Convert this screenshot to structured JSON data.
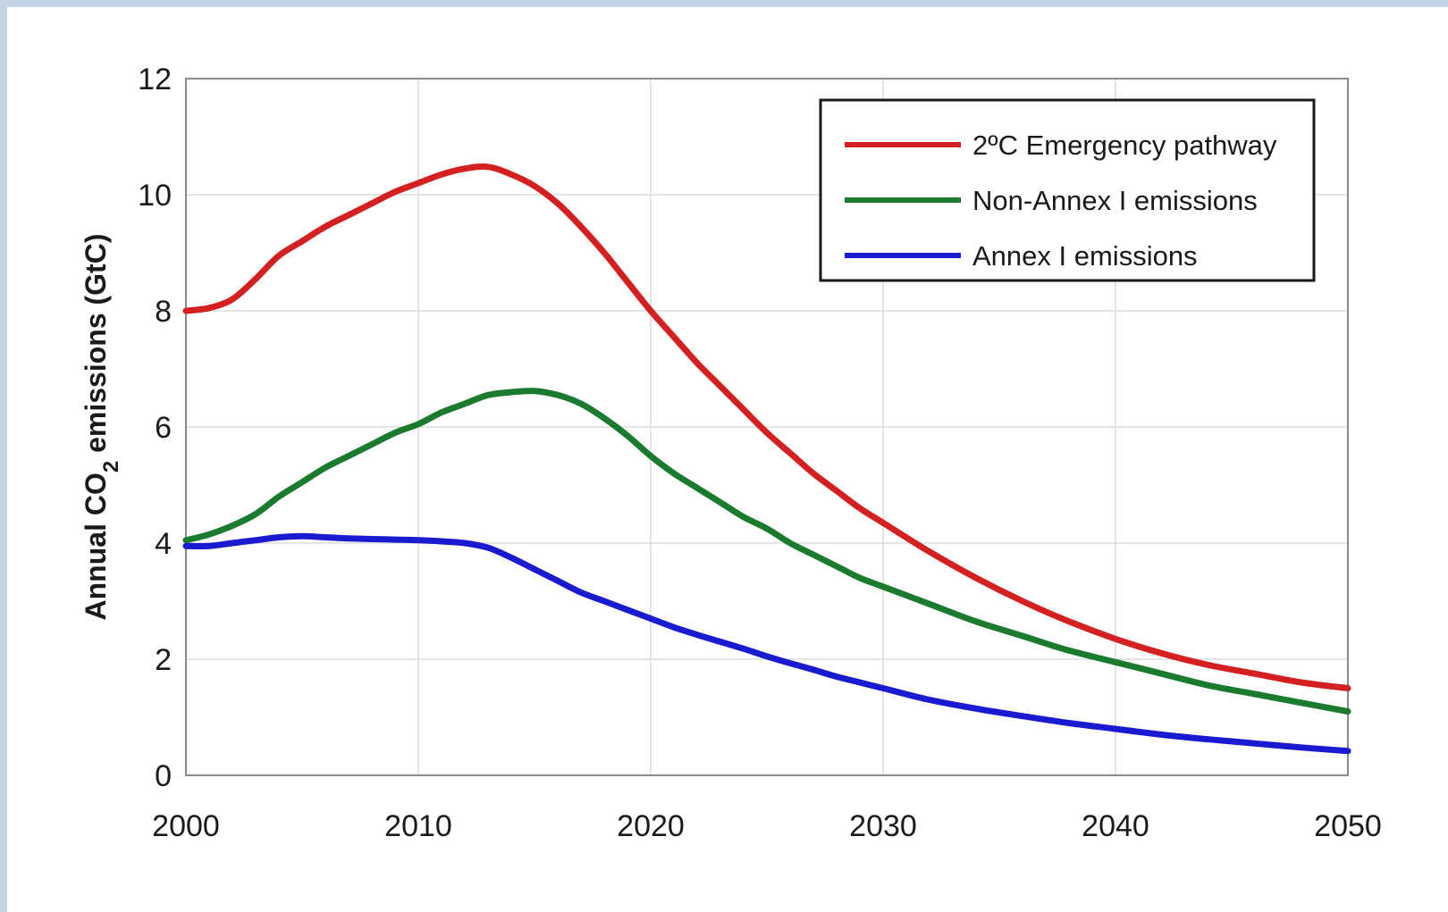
{
  "chart_data": {
    "type": "line",
    "title": "",
    "xlabel": "",
    "ylabel_parts": {
      "before": "Annual CO",
      "subscript": "2",
      "after": " emissions (GtC)"
    },
    "xlim": [
      2000,
      2050
    ],
    "ylim": [
      0,
      12
    ],
    "xticks": [
      2000,
      2010,
      2020,
      2030,
      2040,
      2050
    ],
    "yticks": [
      0,
      2,
      4,
      6,
      8,
      10,
      12
    ],
    "grid": true,
    "legend_position": "top-right",
    "series": [
      {
        "name": "2ºC Emergency pathway",
        "color": "#d42020",
        "x": [
          2000,
          2001,
          2002,
          2003,
          2004,
          2005,
          2006,
          2007,
          2008,
          2009,
          2010,
          2011,
          2012,
          2013,
          2014,
          2015,
          2016,
          2017,
          2018,
          2019,
          2020,
          2021,
          2022,
          2023,
          2024,
          2025,
          2026,
          2027,
          2028,
          2029,
          2030,
          2032,
          2034,
          2036,
          2038,
          2040,
          2042,
          2044,
          2046,
          2048,
          2050
        ],
        "y": [
          8.0,
          8.05,
          8.2,
          8.55,
          8.95,
          9.2,
          9.45,
          9.65,
          9.85,
          10.05,
          10.2,
          10.35,
          10.45,
          10.48,
          10.35,
          10.15,
          9.85,
          9.45,
          9.0,
          8.5,
          8.0,
          7.55,
          7.1,
          6.7,
          6.3,
          5.9,
          5.55,
          5.2,
          4.9,
          4.6,
          4.35,
          3.85,
          3.4,
          3.0,
          2.65,
          2.35,
          2.1,
          1.9,
          1.75,
          1.6,
          1.5
        ]
      },
      {
        "name": "Non-Annex I emissions",
        "color": "#1a7a2e",
        "x": [
          2000,
          2001,
          2002,
          2003,
          2004,
          2005,
          2006,
          2007,
          2008,
          2009,
          2010,
          2011,
          2012,
          2013,
          2014,
          2015,
          2016,
          2017,
          2018,
          2019,
          2020,
          2021,
          2022,
          2023,
          2024,
          2025,
          2026,
          2027,
          2028,
          2029,
          2030,
          2032,
          2034,
          2036,
          2038,
          2040,
          2042,
          2044,
          2046,
          2048,
          2050
        ],
        "y": [
          4.05,
          4.15,
          4.3,
          4.5,
          4.8,
          5.05,
          5.3,
          5.5,
          5.7,
          5.9,
          6.05,
          6.25,
          6.4,
          6.55,
          6.6,
          6.62,
          6.55,
          6.4,
          6.15,
          5.85,
          5.5,
          5.2,
          4.95,
          4.7,
          4.45,
          4.25,
          4.0,
          3.8,
          3.6,
          3.4,
          3.25,
          2.95,
          2.65,
          2.4,
          2.15,
          1.95,
          1.75,
          1.55,
          1.4,
          1.25,
          1.1
        ]
      },
      {
        "name": "Annex I emissions",
        "color": "#1a1ad0",
        "x": [
          2000,
          2001,
          2002,
          2003,
          2004,
          2005,
          2006,
          2007,
          2008,
          2009,
          2010,
          2011,
          2012,
          2013,
          2014,
          2015,
          2016,
          2017,
          2018,
          2019,
          2020,
          2021,
          2022,
          2023,
          2024,
          2025,
          2026,
          2027,
          2028,
          2029,
          2030,
          2032,
          2034,
          2036,
          2038,
          2040,
          2042,
          2044,
          2046,
          2048,
          2050
        ],
        "y": [
          3.95,
          3.95,
          4.0,
          4.05,
          4.1,
          4.12,
          4.1,
          4.08,
          4.07,
          4.06,
          4.05,
          4.03,
          4.0,
          3.92,
          3.75,
          3.55,
          3.35,
          3.15,
          3.0,
          2.85,
          2.7,
          2.55,
          2.42,
          2.3,
          2.18,
          2.05,
          1.93,
          1.82,
          1.7,
          1.6,
          1.5,
          1.3,
          1.15,
          1.02,
          0.9,
          0.8,
          0.7,
          0.62,
          0.55,
          0.48,
          0.42
        ]
      }
    ]
  }
}
